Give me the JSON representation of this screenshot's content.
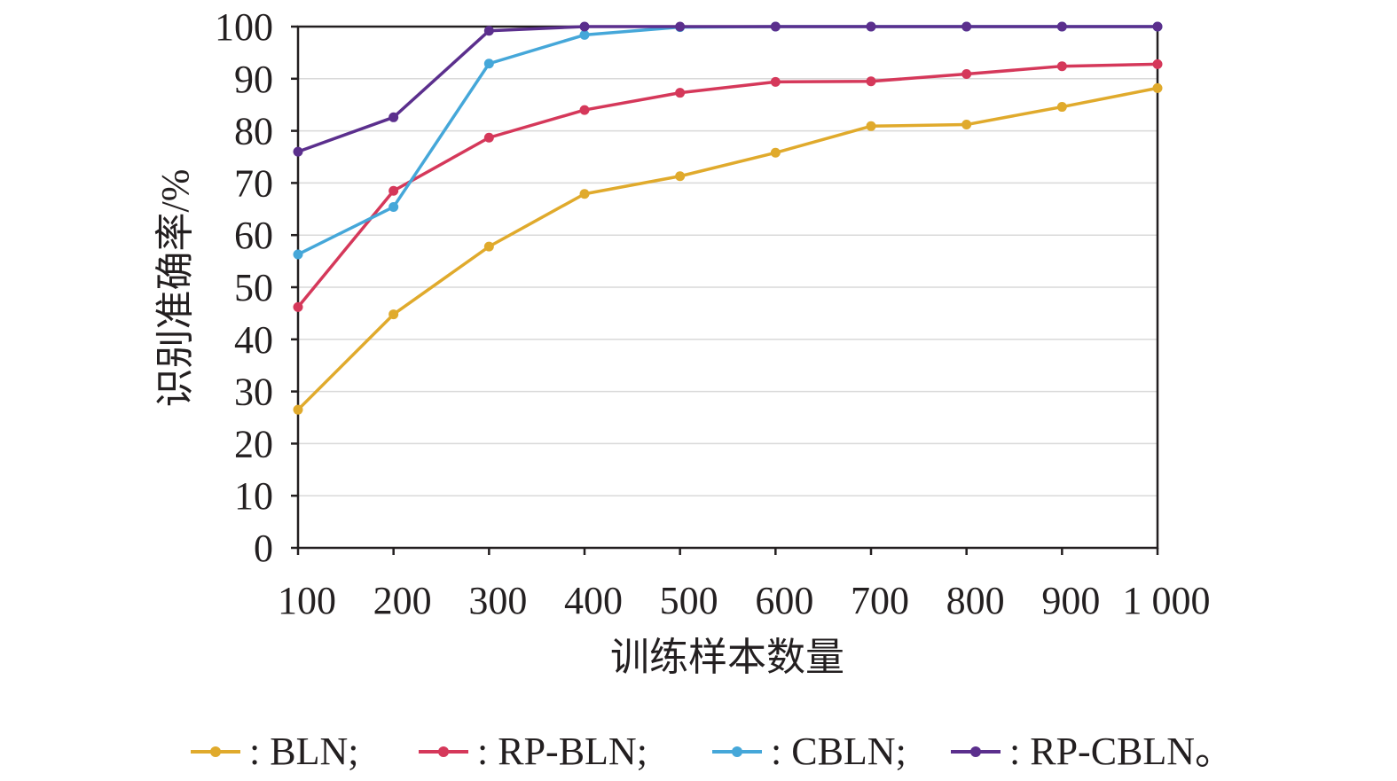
{
  "chart_data": {
    "type": "line",
    "xlabel": "训练样本数量",
    "ylabel": "识别准确率/%",
    "categories": [
      "100",
      "200",
      "300",
      "400",
      "500",
      "600",
      "700",
      "800",
      "900",
      "1 000"
    ],
    "ylim": [
      0,
      100
    ],
    "yticks": [
      "0",
      "10",
      "20",
      "30",
      "40",
      "50",
      "60",
      "70",
      "80",
      "90",
      "100"
    ],
    "grid": "horizontal",
    "legend_position": "bottom",
    "series": [
      {
        "name": ": BLN;",
        "color": "#e0aa2c",
        "values": [
          26.5,
          44.8,
          57.8,
          67.9,
          71.3,
          75.8,
          80.9,
          81.2,
          84.6,
          88.2
        ]
      },
      {
        "name": ": RP-BLN;",
        "color": "#d5385a",
        "values": [
          46.2,
          68.5,
          78.7,
          84.0,
          87.3,
          89.4,
          89.5,
          90.9,
          92.4,
          92.8
        ]
      },
      {
        "name": ": CBLN;",
        "color": "#45a7d9",
        "values": [
          56.3,
          65.4,
          92.9,
          98.4,
          99.9,
          100.0,
          100.0,
          100.0,
          100.0,
          100.0
        ]
      },
      {
        "name": ": RP-CBLN。",
        "color": "#5b2f8d",
        "values": [
          76.0,
          82.6,
          99.2,
          100.0,
          100.0,
          100.0,
          100.0,
          100.0,
          100.0,
          100.0
        ]
      }
    ]
  }
}
